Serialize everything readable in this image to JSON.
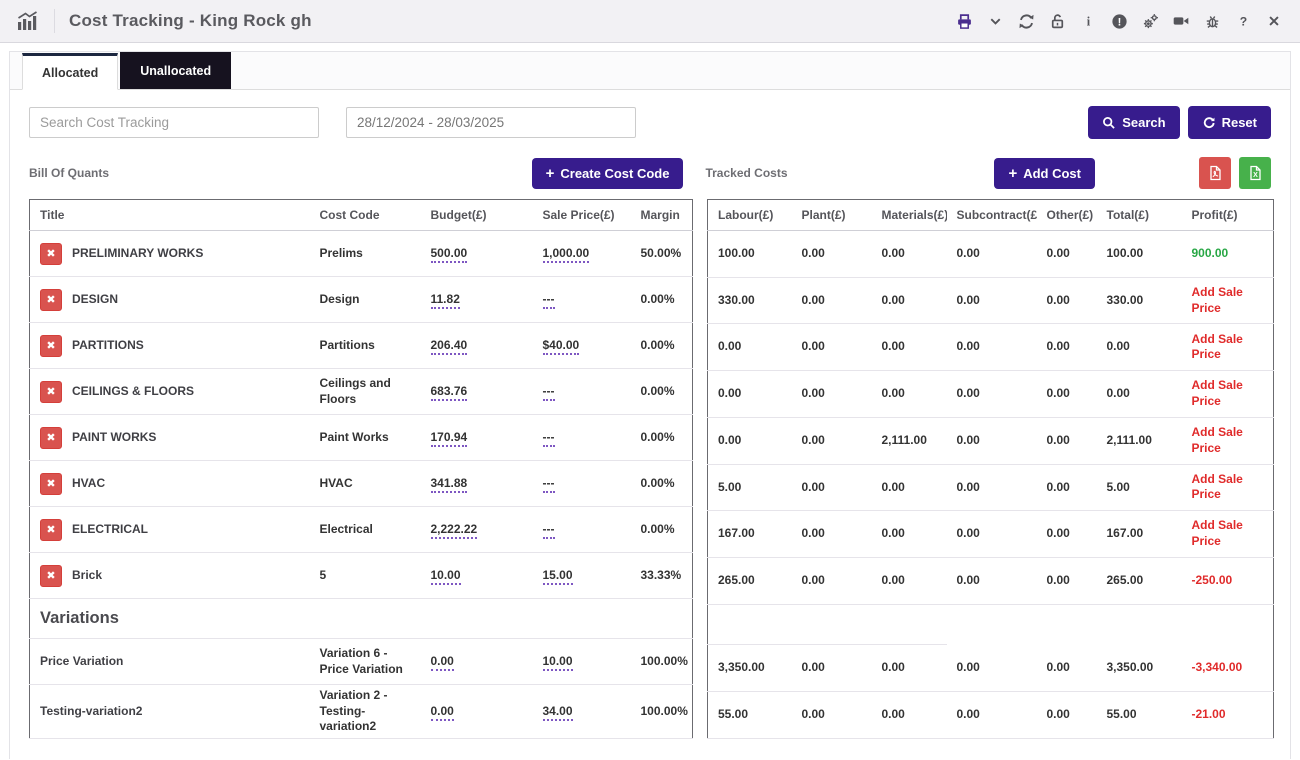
{
  "header": {
    "title": "Cost Tracking - King Rock gh",
    "icons": [
      "bar-chart",
      "printer",
      "chevron-down",
      "refresh",
      "unlock",
      "info",
      "alert-circle",
      "gears",
      "video-camera",
      "bug",
      "help",
      "close"
    ]
  },
  "tabs": [
    {
      "label": "Allocated",
      "active": true
    },
    {
      "label": "Unallocated",
      "active": false
    }
  ],
  "filters": {
    "search_placeholder": "Search Cost Tracking",
    "date_range": "28/12/2024 - 28/03/2025",
    "search_label": "Search",
    "reset_label": "Reset"
  },
  "toolbar": {
    "boq_label": "Bill Of Quants",
    "create_cost_code_label": "Create Cost Code",
    "tracked_label": "Tracked Costs",
    "add_cost_label": "Add Cost"
  },
  "boq": {
    "headers": [
      "Title",
      "Cost Code",
      "Budget(£)",
      "Sale Price(£)",
      "Margin"
    ],
    "rows": [
      {
        "title": "PRELIMINARY WORKS",
        "cost_code": "Prelims",
        "budget": "500.00",
        "sale_price": "1,000.00",
        "margin": "50.00%",
        "deletable": true
      },
      {
        "title": "DESIGN",
        "cost_code": "Design",
        "budget": "11.82",
        "sale_price": "---",
        "margin": "0.00%",
        "deletable": true
      },
      {
        "title": "PARTITIONS",
        "cost_code": "Partitions",
        "budget": "206.40",
        "sale_price": "$40.00",
        "margin": "0.00%",
        "deletable": true
      },
      {
        "title": "CEILINGS & FLOORS",
        "cost_code": "Ceilings and Floors",
        "budget": "683.76",
        "sale_price": "---",
        "margin": "0.00%",
        "deletable": true
      },
      {
        "title": "PAINT WORKS",
        "cost_code": "Paint Works",
        "budget": "170.94",
        "sale_price": "---",
        "margin": "0.00%",
        "deletable": true
      },
      {
        "title": "HVAC",
        "cost_code": "HVAC",
        "budget": "341.88",
        "sale_price": "---",
        "margin": "0.00%",
        "deletable": true
      },
      {
        "title": "ELECTRICAL",
        "cost_code": "Electrical",
        "budget": "2,222.22",
        "sale_price": "---",
        "margin": "0.00%",
        "deletable": true
      },
      {
        "title": "Brick",
        "cost_code": "5",
        "budget": "10.00",
        "sale_price": "15.00",
        "margin": "33.33%",
        "deletable": true
      },
      {
        "section": "Variations"
      },
      {
        "title": "Price Variation",
        "cost_code": "Variation 6 - Price Variation",
        "budget": "0.00",
        "sale_price": "10.00",
        "margin": "100.00%",
        "deletable": false
      },
      {
        "title": "Testing-variation2",
        "cost_code": "Variation 2 - Testing-variation2",
        "budget": "0.00",
        "sale_price": "34.00",
        "margin": "100.00%",
        "deletable": false
      }
    ]
  },
  "tracked": {
    "headers": [
      "Labour(£)",
      "Plant(£)",
      "Materials(£)",
      "Subcontract(£)",
      "Other(£)",
      "Total(£)",
      "Profit(£)"
    ],
    "rows": [
      {
        "labour": "100.00",
        "plant": "0.00",
        "materials": "0.00",
        "subcontract": "0.00",
        "other": "0.00",
        "total": "100.00",
        "profit": "900.00",
        "profit_type": "positive"
      },
      {
        "labour": "330.00",
        "plant": "0.00",
        "materials": "0.00",
        "subcontract": "0.00",
        "other": "0.00",
        "total": "330.00",
        "profit": "Add Sale Price",
        "profit_type": "add-sale"
      },
      {
        "labour": "0.00",
        "plant": "0.00",
        "materials": "0.00",
        "subcontract": "0.00",
        "other": "0.00",
        "total": "0.00",
        "profit": "Add Sale Price",
        "profit_type": "add-sale"
      },
      {
        "labour": "0.00",
        "plant": "0.00",
        "materials": "0.00",
        "subcontract": "0.00",
        "other": "0.00",
        "total": "0.00",
        "profit": "Add Sale Price",
        "profit_type": "add-sale"
      },
      {
        "labour": "0.00",
        "plant": "0.00",
        "materials": "2,111.00",
        "subcontract": "0.00",
        "other": "0.00",
        "total": "2,111.00",
        "profit": "Add Sale Price",
        "profit_type": "add-sale"
      },
      {
        "labour": "5.00",
        "plant": "0.00",
        "materials": "0.00",
        "subcontract": "0.00",
        "other": "0.00",
        "total": "5.00",
        "profit": "Add Sale Price",
        "profit_type": "add-sale"
      },
      {
        "labour": "167.00",
        "plant": "0.00",
        "materials": "0.00",
        "subcontract": "0.00",
        "other": "0.00",
        "total": "167.00",
        "profit": "Add Sale Price",
        "profit_type": "add-sale"
      },
      {
        "labour": "265.00",
        "plant": "0.00",
        "materials": "0.00",
        "subcontract": "0.00",
        "other": "0.00",
        "total": "265.00",
        "profit": "-250.00",
        "profit_type": "negative"
      },
      {
        "section": true
      },
      {
        "labour": "3,350.00",
        "plant": "0.00",
        "materials": "0.00",
        "subcontract": "0.00",
        "other": "0.00",
        "total": "3,350.00",
        "profit": "-3,340.00",
        "profit_type": "negative"
      },
      {
        "labour": "55.00",
        "plant": "0.00",
        "materials": "0.00",
        "subcontract": "0.00",
        "other": "0.00",
        "total": "55.00",
        "profit": "-21.00",
        "profit_type": "negative"
      }
    ]
  },
  "colors": {
    "accent_purple": "#371c8d",
    "tab_dark": "#16121f",
    "profit_positive": "#28a745",
    "profit_negative": "#e02b2b",
    "delete_red": "#d9534f",
    "pdf_red": "#d9534f",
    "excel_green": "#47b14b",
    "header_bg": "#f2f1f4"
  }
}
